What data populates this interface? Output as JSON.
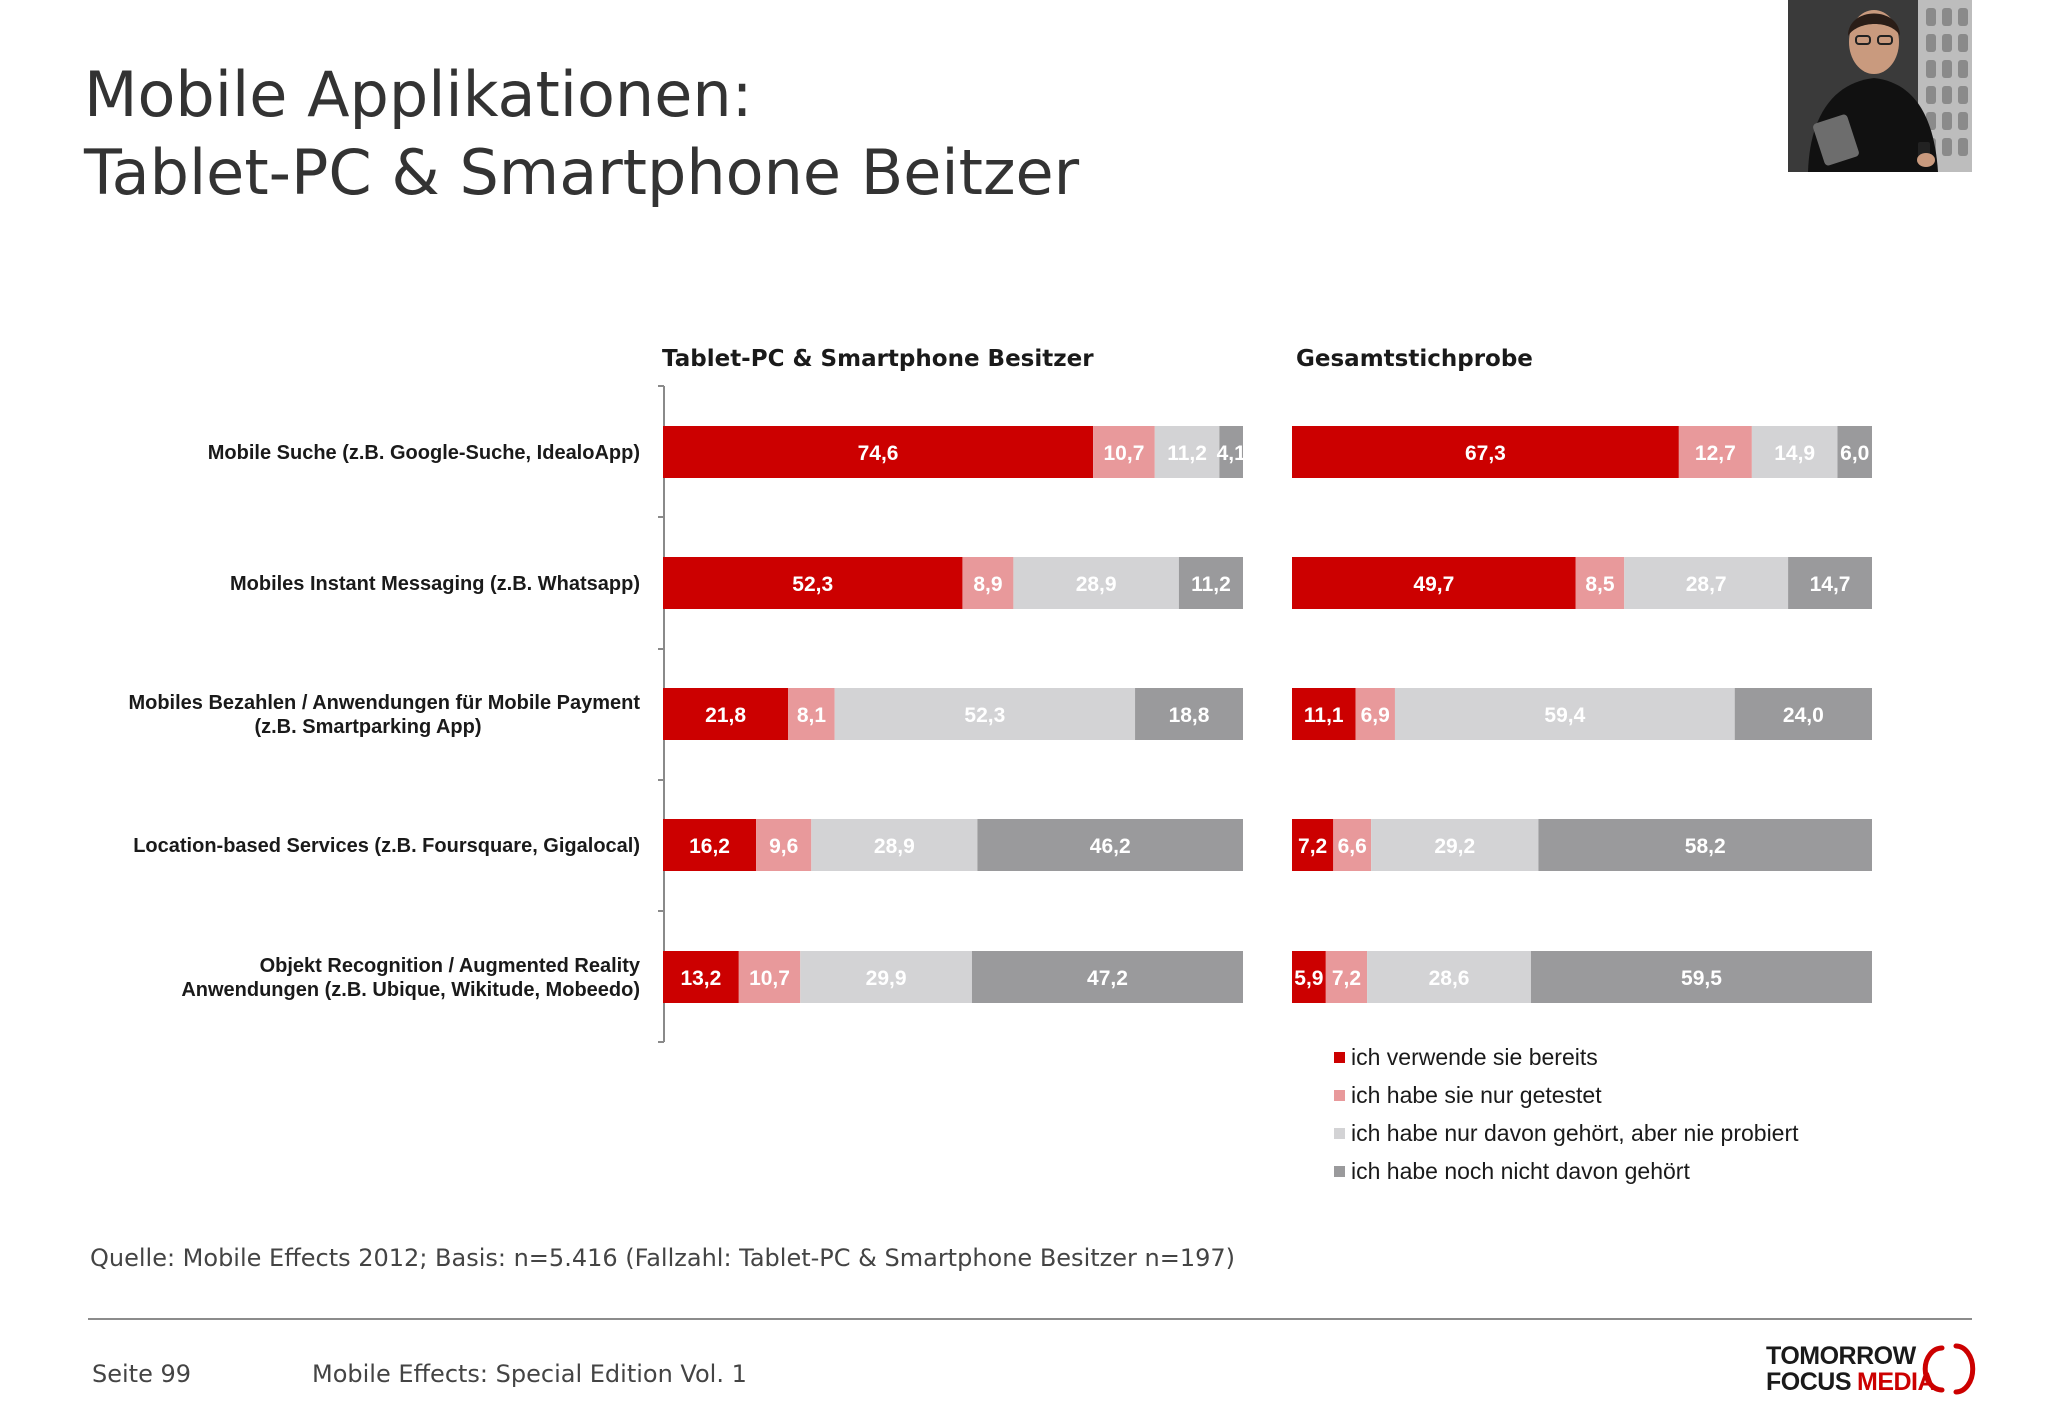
{
  "slide": {
    "title_line1": "Mobile Applikationen:",
    "title_line2": "Tablet-PC & Smartphone Beitzer"
  },
  "chart_data": {
    "type": "bar",
    "orientation": "horizontal",
    "stacked": true,
    "categories": [
      [
        "Mobile Suche (z.B. Google-Suche, IdealoApp)"
      ],
      [
        "Mobiles Instant Messaging (z.B. Whatsapp)"
      ],
      [
        "Mobiles Bezahlen / Anwendungen für Mobile Payment",
        "(z.B. Smartparking App)"
      ],
      [
        "Location-based Services (z.B. Foursquare, Gigalocal)"
      ],
      [
        "Objekt Recognition / Augmented Reality",
        "Anwendungen (z.B. Ubique, Wikitude, Mobeedo)"
      ]
    ],
    "series_names": [
      "ich verwende sie bereits",
      "ich habe sie nur getestet",
      "ich habe nur davon gehört, aber nie probiert",
      "ich habe noch nicht davon gehört"
    ],
    "colors": [
      "#cc0000",
      "#e8999b",
      "#d3d3d5",
      "#9a9a9c"
    ],
    "panels": [
      {
        "title": "Tablet-PC & Smartphone Besitzer",
        "rows": [
          [
            74.6,
            10.7,
            11.2,
            4.1
          ],
          [
            52.3,
            8.9,
            28.9,
            11.2
          ],
          [
            21.8,
            8.1,
            52.3,
            18.8
          ],
          [
            16.2,
            9.6,
            28.9,
            46.2
          ],
          [
            13.2,
            10.7,
            29.9,
            47.2
          ]
        ]
      },
      {
        "title": "Gesamtstichprobe",
        "rows": [
          [
            67.3,
            12.7,
            14.9,
            6.0
          ],
          [
            49.7,
            8.5,
            28.7,
            14.7
          ],
          [
            11.1,
            6.9,
            59.4,
            24.0
          ],
          [
            7.2,
            6.6,
            29.2,
            58.2
          ],
          [
            5.9,
            7.2,
            28.6,
            59.5
          ]
        ]
      }
    ],
    "value_labels": [
      [
        [
          "74,6",
          "10,7",
          "11,2",
          "4,1"
        ],
        [
          "52,3",
          "8,9",
          "28,9",
          "11,2"
        ],
        [
          "21,8",
          "8,1",
          "52,3",
          "18,8"
        ],
        [
          "16,2",
          "9,6",
          "28,9",
          "46,2"
        ],
        [
          "13,2",
          "10,7",
          "29,9",
          "47,2"
        ]
      ],
      [
        [
          "67,3",
          "12,7",
          "14,9",
          "6,0"
        ],
        [
          "49,7",
          "8,5",
          "28,7",
          "14,7"
        ],
        [
          "11,1",
          "6,9",
          "59,4",
          "24,0"
        ],
        [
          "7,2",
          "6,6",
          "29,2",
          "58,2"
        ],
        [
          "5,9",
          "7,2",
          "28,6",
          "59,5"
        ]
      ]
    ],
    "legend_position": "bottom-right",
    "grid": false
  },
  "source": "Quelle: Mobile Effects 2012; Basis: n=5.416 (Fallzahl: Tablet-PC & Smartphone Besitzer n=197)",
  "footer": {
    "page": "Seite 99",
    "edition": "Mobile Effects: Special Edition Vol. 1",
    "logo_line1": "TOMORROW",
    "logo_line2a": "FOCUS",
    "logo_line2b": "MEDIA"
  }
}
